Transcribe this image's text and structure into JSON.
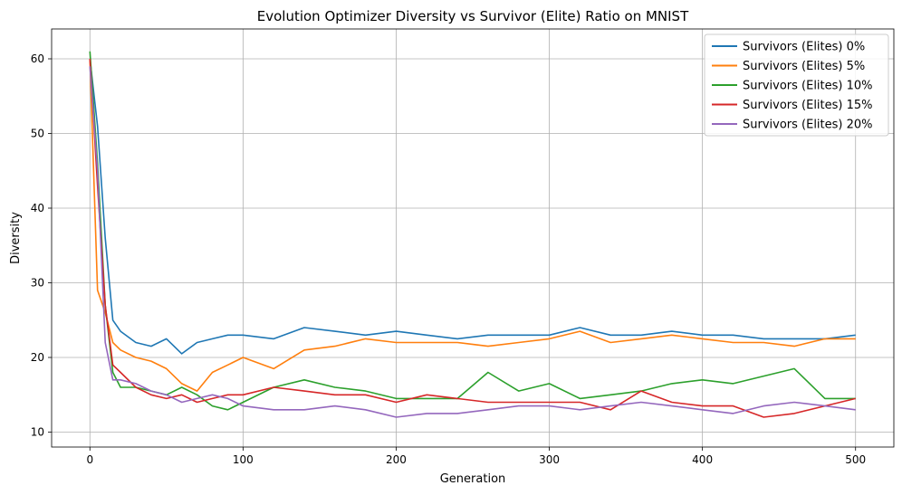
{
  "chart_data": {
    "type": "line",
    "title": "Evolution Optimizer Diversity vs Survivor (Elite) Ratio on MNIST",
    "xlabel": "Generation",
    "ylabel": "Diversity",
    "xlim": [
      -25,
      525
    ],
    "ylim": [
      8,
      64
    ],
    "xticks": [
      0,
      100,
      200,
      300,
      400,
      500
    ],
    "yticks": [
      10,
      20,
      30,
      40,
      50,
      60
    ],
    "grid": true,
    "legend_position": "top-right",
    "x": [
      0,
      5,
      10,
      15,
      20,
      30,
      40,
      50,
      60,
      70,
      80,
      90,
      100,
      120,
      140,
      160,
      180,
      200,
      220,
      240,
      260,
      280,
      300,
      320,
      340,
      360,
      380,
      400,
      420,
      440,
      460,
      480,
      500
    ],
    "series": [
      {
        "name": "Survivors (Elites) 0%",
        "color": "#1f77b4",
        "values": [
          60,
          51,
          36,
          25,
          23.5,
          22,
          21.5,
          22.5,
          20.5,
          22,
          22.5,
          23,
          23,
          22.5,
          24,
          23.5,
          23,
          23.5,
          23,
          22.5,
          23,
          23,
          23,
          24,
          23,
          23,
          23.5,
          23,
          23,
          22.5,
          22.5,
          22.5,
          23
        ]
      },
      {
        "name": "Survivors (Elites) 5%",
        "color": "#ff7f0e",
        "values": [
          60,
          29,
          26,
          22,
          21,
          20,
          19.5,
          18.5,
          16.5,
          15.5,
          18,
          19,
          20,
          18.5,
          21,
          21.5,
          22.5,
          22,
          22,
          22,
          21.5,
          22,
          22.5,
          23.5,
          22,
          22.5,
          23,
          22.5,
          22,
          22,
          21.5,
          22.5,
          22.5
        ]
      },
      {
        "name": "Survivors (Elites) 10%",
        "color": "#2ca02c",
        "values": [
          61,
          46,
          27,
          18,
          16,
          16,
          15.5,
          15,
          16,
          15,
          13.5,
          13,
          14,
          16,
          17,
          16,
          15.5,
          14.5,
          14.5,
          14.5,
          18,
          15.5,
          16.5,
          14.5,
          15,
          15.5,
          16.5,
          17,
          16.5,
          17.5,
          18.5,
          14.5,
          14.5
        ]
      },
      {
        "name": "Survivors (Elites) 15%",
        "color": "#d62728",
        "values": [
          60,
          43,
          27,
          19,
          18,
          16,
          15,
          14.5,
          15,
          14,
          14.5,
          15,
          15,
          16,
          15.5,
          15,
          15,
          14,
          15,
          14.5,
          14,
          14,
          14,
          14,
          13,
          15.5,
          14,
          13.5,
          13.5,
          12,
          12.5,
          13.5,
          14.5
        ]
      },
      {
        "name": "Survivors (Elites) 20%",
        "color": "#9467bd",
        "values": [
          59,
          45,
          22,
          17,
          17,
          16.5,
          15.5,
          15,
          14,
          14.5,
          15,
          14.5,
          13.5,
          13,
          13,
          13.5,
          13,
          12,
          12.5,
          12.5,
          13,
          13.5,
          13.5,
          13,
          13.5,
          14,
          13.5,
          13,
          12.5,
          13.5,
          14,
          13.5,
          13
        ]
      }
    ]
  }
}
